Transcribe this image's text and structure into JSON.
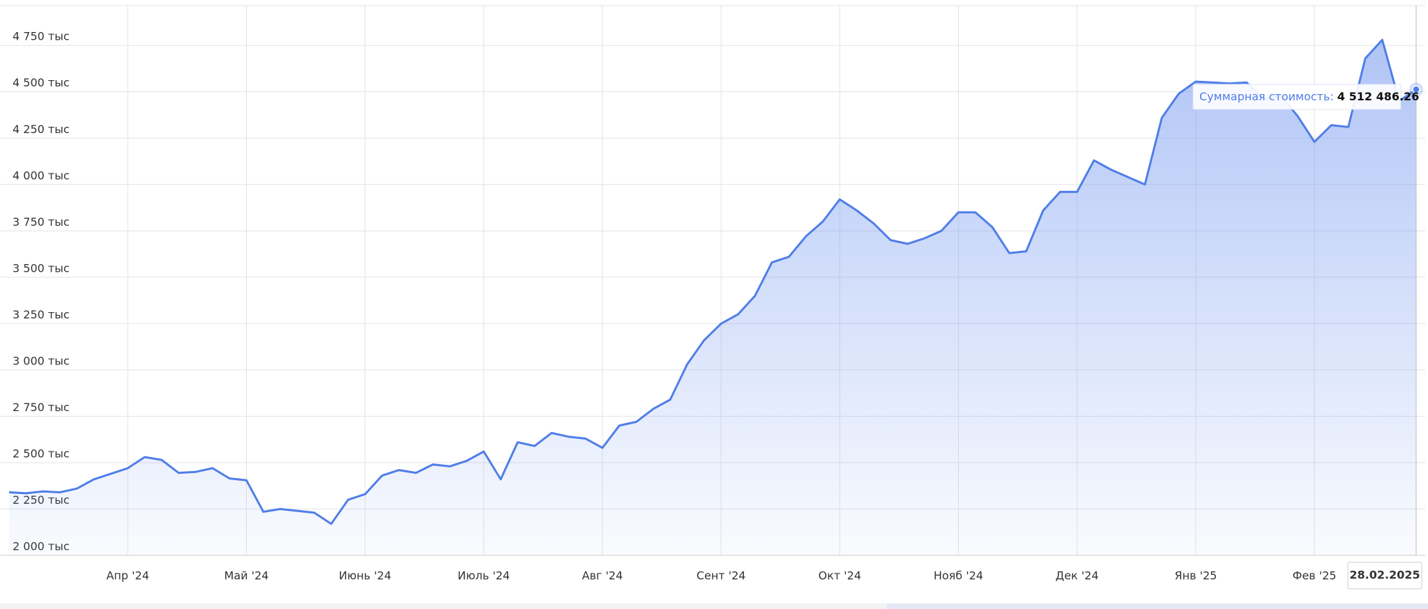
{
  "chart_data": {
    "type": "area",
    "categories": [
      null,
      null,
      null,
      null,
      null,
      null,
      null,
      "Апр '24",
      null,
      null,
      null,
      null,
      null,
      null,
      "Май '24",
      null,
      null,
      null,
      null,
      null,
      null,
      "Июнь '24",
      null,
      null,
      null,
      null,
      null,
      null,
      "Июль '24",
      null,
      null,
      null,
      null,
      null,
      null,
      "Авг '24",
      null,
      null,
      null,
      null,
      null,
      null,
      "Сент '24",
      null,
      null,
      null,
      null,
      null,
      null,
      "Окт '24",
      null,
      null,
      null,
      null,
      null,
      null,
      "Нояб '24",
      null,
      null,
      null,
      null,
      null,
      null,
      "Дек '24",
      null,
      null,
      null,
      null,
      null,
      null,
      "Янв '25",
      null,
      null,
      null,
      null,
      null,
      null,
      "Фев '25",
      null,
      null,
      null,
      null,
      null,
      "28.02.2025"
    ],
    "series": [
      {
        "color": "#4f7ee8",
        "values": [
          2340,
          2335,
          2345,
          2340,
          2360,
          2410,
          2440,
          2470,
          2530,
          2515,
          2445,
          2450,
          2470,
          2415,
          2405,
          2235,
          2250,
          2240,
          2230,
          2170,
          2300,
          2330,
          2430,
          2460,
          2445,
          2490,
          2480,
          2510,
          2560,
          2410,
          2610,
          2590,
          2660,
          2640,
          2630,
          2580,
          2700,
          2720,
          2790,
          2840,
          3030,
          3160,
          3250,
          3300,
          3400,
          3580,
          3610,
          3720,
          3800,
          3920,
          3860,
          3790,
          3700,
          3680,
          3710,
          3750,
          3850,
          3850,
          3770,
          3630,
          3640,
          3860,
          3960,
          3960,
          4130,
          4080,
          4040,
          4000,
          4360,
          4490,
          4555,
          4550,
          4545,
          4550,
          4460,
          4480,
          4370,
          4230,
          4320,
          4310,
          4680,
          4780,
          4450,
          4512.48626
        ]
      }
    ],
    "ylim": [
      2000,
      4965
    ],
    "yticks": [
      {
        "value": 2000,
        "label": "2 000 тыс"
      },
      {
        "value": 2250,
        "label": "2 250 тыс"
      },
      {
        "value": 2500,
        "label": "2 500 тыс"
      },
      {
        "value": 2750,
        "label": "2 750 тыс"
      },
      {
        "value": 3000,
        "label": "3 000 тыс"
      },
      {
        "value": 3250,
        "label": "3 250 тыс"
      },
      {
        "value": 3500,
        "label": "3 500 тыс"
      },
      {
        "value": 3750,
        "label": "3 750 тыс"
      },
      {
        "value": 4000,
        "label": "4 000 тыс"
      },
      {
        "value": 4250,
        "label": "4 250 тыс"
      },
      {
        "value": 4500,
        "label": "4 500 тыс"
      },
      {
        "value": 4750,
        "label": "4 750 тыс"
      }
    ],
    "grid": true,
    "tooltip": {
      "label": "Суммарная стоимость:",
      "value": "4 512 486.26"
    }
  }
}
